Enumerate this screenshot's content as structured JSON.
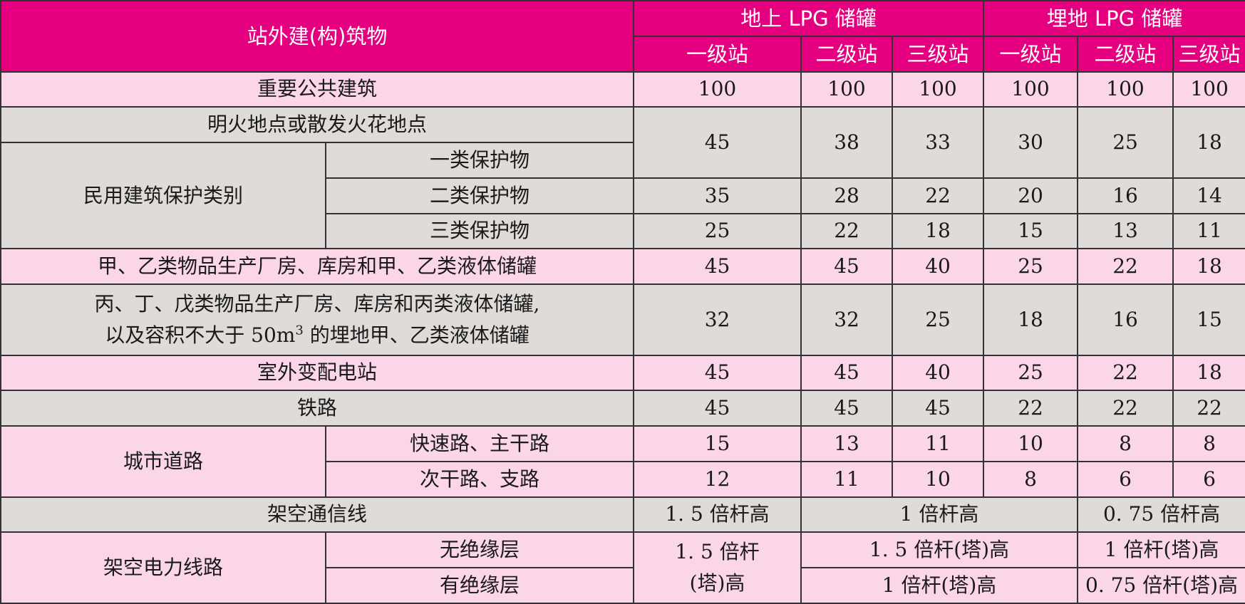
{
  "header": {
    "col_structure": "站外建(构)筑物",
    "group_above": "地上 LPG 储罐",
    "group_buried": "埋地 LPG 储罐",
    "level1": "一级站",
    "level2": "二级站",
    "level3": "三级站"
  },
  "rows": {
    "important_public": {
      "label": "重要公共建筑",
      "values": [
        "100",
        "100",
        "100",
        "100",
        "100",
        "100"
      ]
    },
    "open_fire": {
      "label": "明火地点或散发火花地点"
    },
    "civil": {
      "label": "民用建筑保护类别",
      "class1": "一类保护物",
      "class2": "二类保护物",
      "class3": "三类保护物"
    },
    "open_fire_class1_values": [
      "45",
      "38",
      "33",
      "30",
      "25",
      "18"
    ],
    "class2_values": [
      "35",
      "28",
      "22",
      "20",
      "16",
      "14"
    ],
    "class3_values": [
      "25",
      "22",
      "18",
      "15",
      "13",
      "11"
    ],
    "class_ab": {
      "label": "甲、乙类物品生产厂房、库房和甲、乙类液体储罐",
      "values": [
        "45",
        "45",
        "40",
        "25",
        "22",
        "18"
      ]
    },
    "class_cde": {
      "label_line1": "丙、丁、戊类物品生产厂房、库房和丙类液体储罐,",
      "label_line2_pre": "以及容积不大于 50m",
      "label_line2_sup": "3",
      "label_line2_post": " 的埋地甲、乙类液体储罐",
      "values": [
        "32",
        "32",
        "25",
        "18",
        "16",
        "15"
      ]
    },
    "substation": {
      "label": "室外变配电站",
      "values": [
        "45",
        "45",
        "40",
        "25",
        "22",
        "18"
      ]
    },
    "railway": {
      "label": "铁路",
      "values": [
        "45",
        "45",
        "45",
        "22",
        "22",
        "22"
      ]
    },
    "city_road": {
      "label": "城市道路",
      "expressway": {
        "label": "快速路、主干路",
        "values": [
          "15",
          "13",
          "11",
          "10",
          "8",
          "8"
        ]
      },
      "secondary": {
        "label": "次干路、支路",
        "values": [
          "12",
          "11",
          "10",
          "8",
          "6",
          "6"
        ]
      }
    },
    "telecom": {
      "label": "架空通信线",
      "v1": "1. 5 倍杆高",
      "v2": "1 倍杆高",
      "v3": "0. 75 倍杆高"
    },
    "power": {
      "label": "架空电力线路",
      "no_insulation": "无绝缘层",
      "with_insulation": "有绝缘层",
      "level1_line1": "1. 5 倍杆",
      "level1_line2": "(塔)高",
      "no_ins_mid": "1. 5 倍杆(塔)高",
      "no_ins_right": "1 倍杆(塔)高",
      "ins_mid": "1 倍杆(塔)高",
      "ins_right": "0. 75 倍杆(塔)高"
    }
  },
  "colors": {
    "header_bg": "#e4007f",
    "pink_row": "#fbd6e9",
    "gray_row": "#dedbd8",
    "border": "#333333"
  }
}
